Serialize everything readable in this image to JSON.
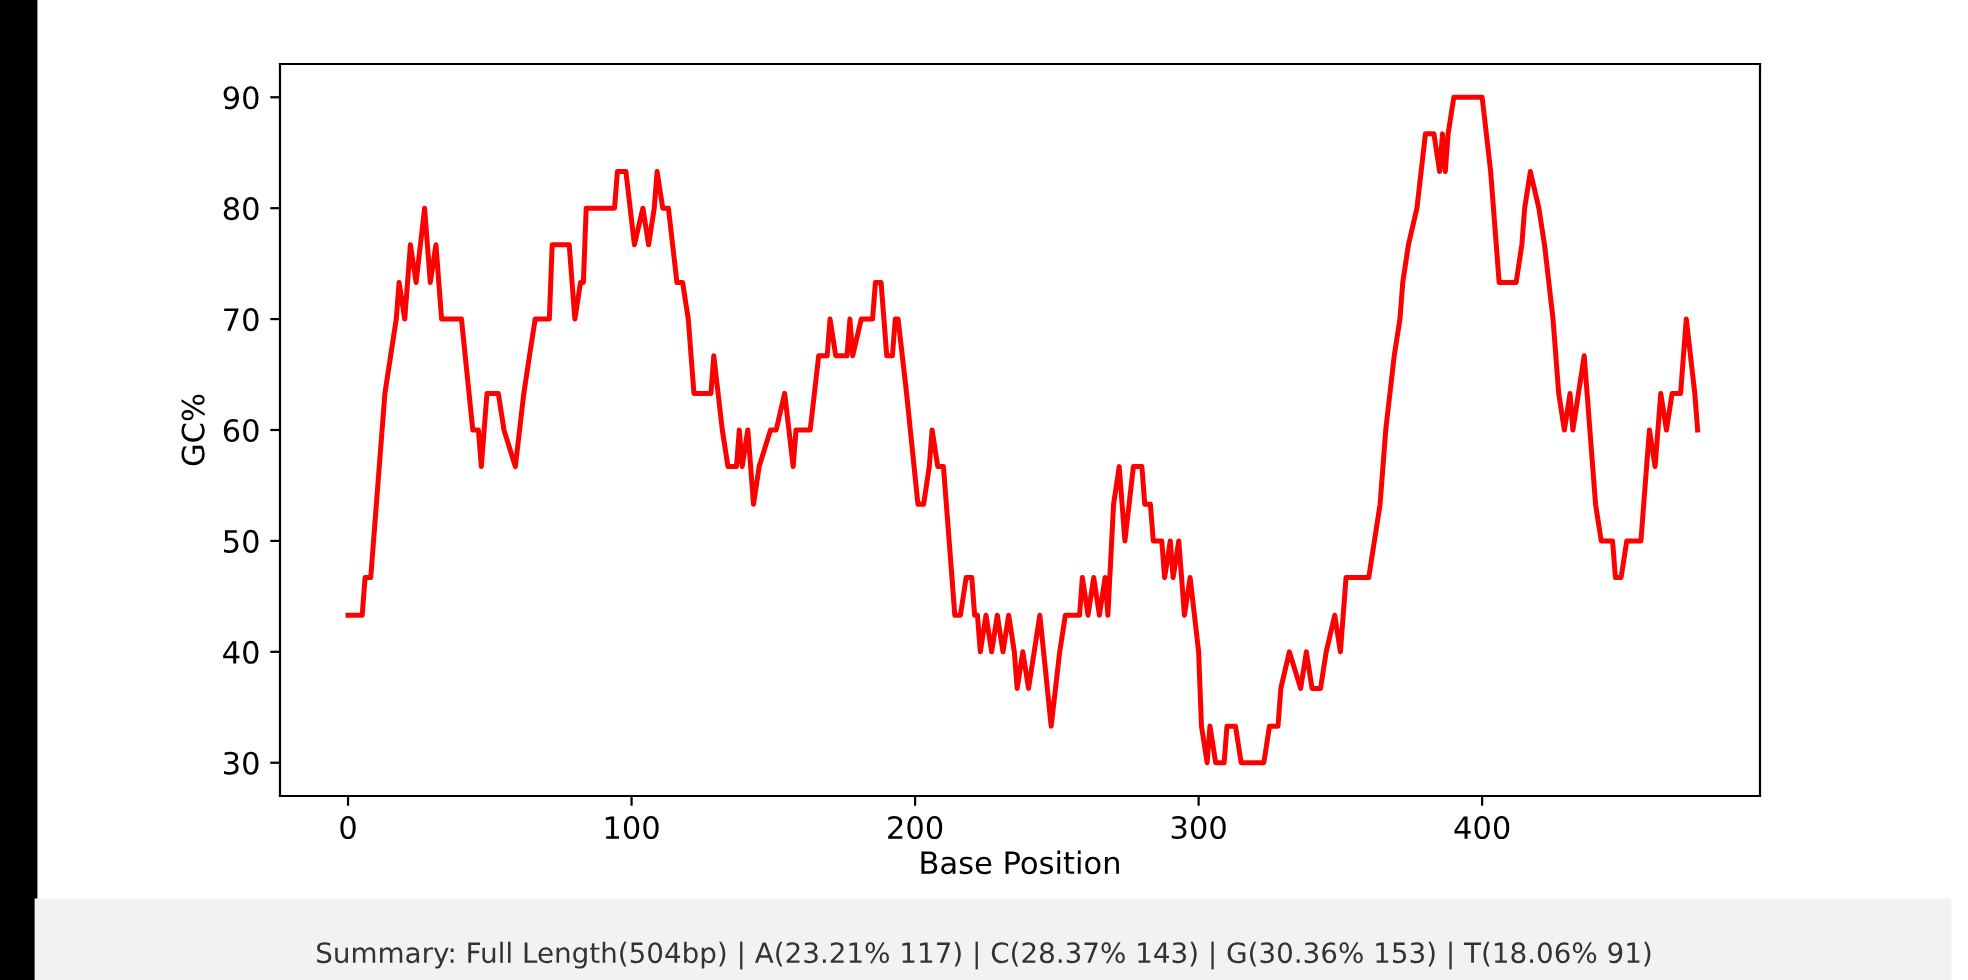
{
  "chart_data": {
    "type": "line",
    "xlabel": "Base Position",
    "ylabel": "GC%",
    "x": [
      0,
      5,
      6,
      8,
      13,
      17,
      18,
      20,
      22,
      24,
      27,
      29,
      31,
      33,
      40,
      44,
      46,
      47,
      49,
      53,
      55,
      59,
      62,
      64,
      66,
      71,
      72,
      78,
      80,
      82,
      83,
      84,
      94,
      95,
      98,
      101,
      104,
      106,
      108,
      109,
      111,
      113,
      116,
      118,
      120,
      122,
      128,
      129,
      132,
      134,
      137,
      138,
      139,
      141,
      142,
      143,
      145,
      149,
      151,
      154,
      157,
      158,
      163,
      166,
      169,
      170,
      172,
      176,
      177,
      178,
      181,
      185,
      186,
      188,
      190,
      192,
      193,
      194,
      197,
      201,
      203,
      205,
      206,
      208,
      210,
      213,
      214,
      216,
      218,
      220,
      221,
      222,
      223,
      225,
      227,
      229,
      231,
      233,
      235,
      236,
      238,
      240,
      242,
      244,
      248,
      251,
      253,
      258,
      259,
      261,
      263,
      265,
      267,
      268,
      270,
      272,
      274,
      277,
      280,
      281,
      283,
      284,
      287,
      288,
      290,
      291,
      293,
      295,
      297,
      300,
      301,
      303,
      304,
      306,
      309,
      310,
      313,
      315,
      323,
      325,
      328,
      329,
      332,
      336,
      338,
      340,
      343,
      345,
      348,
      350,
      352,
      360,
      362,
      364,
      366,
      369,
      371,
      372,
      374,
      377,
      380,
      383,
      385,
      386,
      387,
      388,
      390,
      400,
      403,
      406,
      412,
      414,
      415,
      417,
      420,
      422,
      425,
      427,
      429,
      431,
      432,
      436,
      440,
      442,
      446,
      447,
      449,
      451,
      456,
      458,
      459,
      461,
      463,
      465,
      467,
      470,
      471,
      472,
      475,
      476
    ],
    "series": [
      {
        "color": "#ff0000",
        "values": [
          43.3,
          43.3,
          46.7,
          46.7,
          63.3,
          70,
          73.3,
          70,
          76.7,
          73.3,
          80,
          73.3,
          76.7,
          70,
          70,
          60,
          60,
          56.7,
          63.3,
          63.3,
          60,
          56.7,
          63.3,
          66.7,
          70,
          70,
          76.7,
          76.7,
          70,
          73.3,
          73.3,
          80,
          80,
          83.3,
          83.3,
          76.7,
          80,
          76.7,
          80,
          83.3,
          80,
          80,
          73.3,
          73.3,
          70,
          63.3,
          63.3,
          66.7,
          60,
          56.7,
          56.7,
          60,
          56.7,
          60,
          56.7,
          53.3,
          56.7,
          60,
          60,
          63.3,
          56.7,
          60,
          60,
          66.7,
          66.7,
          70,
          66.7,
          66.7,
          70,
          66.7,
          70,
          70,
          73.3,
          73.3,
          66.7,
          66.7,
          70,
          70,
          63.3,
          53.3,
          53.3,
          56.7,
          60,
          56.7,
          56.7,
          46.7,
          43.3,
          43.3,
          46.7,
          46.7,
          43.3,
          43.3,
          40,
          43.3,
          40,
          43.3,
          40,
          43.3,
          40,
          36.7,
          40,
          36.7,
          40,
          43.3,
          33.3,
          40,
          43.3,
          43.3,
          46.7,
          43.3,
          46.7,
          43.3,
          46.7,
          43.3,
          53.3,
          56.7,
          50,
          56.7,
          56.7,
          53.3,
          53.3,
          50,
          50,
          46.7,
          50,
          46.7,
          50,
          43.3,
          46.7,
          40,
          33.3,
          30,
          33.3,
          30,
          30,
          33.3,
          33.3,
          30,
          30,
          33.3,
          33.3,
          36.7,
          40,
          36.7,
          40,
          36.7,
          36.7,
          40,
          43.3,
          40,
          46.7,
          46.7,
          50,
          53.3,
          60,
          66.7,
          70,
          73.3,
          76.7,
          80,
          86.7,
          86.7,
          83.3,
          86.7,
          83.3,
          86.7,
          90,
          90,
          83.3,
          73.3,
          73.3,
          76.7,
          80,
          83.3,
          80,
          76.7,
          70,
          63.3,
          60,
          63.3,
          60,
          66.7,
          53.3,
          50,
          50,
          46.7,
          46.7,
          50,
          50,
          56.7,
          60,
          56.7,
          63.3,
          60,
          63.3,
          63.3,
          66.7,
          70,
          63.3,
          60
        ]
      }
    ],
    "xlim": [
      -24,
      498
    ],
    "ylim": [
      27,
      93
    ],
    "xticks": [
      0,
      100,
      200,
      300,
      400
    ],
    "yticks": [
      30,
      40,
      50,
      60,
      70,
      80,
      90
    ],
    "grid": false,
    "marker": "none",
    "line_style": "solid",
    "annotations": [
      "Summary: Full Length(504bp) | A(23.21% 117) | C(28.37% 143) | G(30.36% 153) | T(18.06% 91)"
    ]
  }
}
